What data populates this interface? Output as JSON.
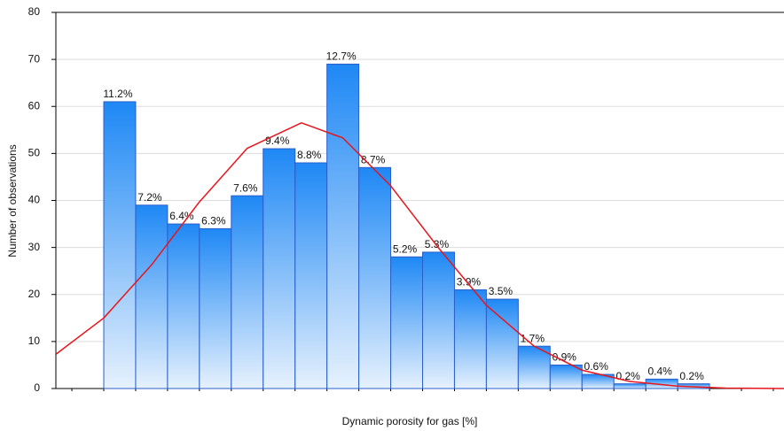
{
  "chart_data": {
    "type": "histogram",
    "xlabel": "Dynamic porosity for gas [%]",
    "ylabel": "Number of observations",
    "categories": [
      null,
      null,
      null,
      null,
      null,
      null,
      null,
      null,
      null,
      null,
      null,
      null,
      null,
      null,
      null,
      null,
      null,
      null,
      null
    ],
    "values": [
      61,
      39,
      35,
      34,
      41,
      51,
      48,
      69,
      47,
      28,
      29,
      21,
      19,
      9,
      5,
      3,
      1,
      2,
      1
    ],
    "bar_labels": [
      "11.2%",
      "7.2%",
      "6.4%",
      "6.3%",
      "7.6%",
      "9.4%",
      "8.8%",
      "12.7%",
      "8.7%",
      "5.2%",
      "5.3%",
      "3.9%",
      "3.5%",
      "1.7%",
      "0.9%",
      "0.6%",
      "0.2%",
      "0.4%",
      "0.2%"
    ],
    "color": "#1e88f5",
    "edge_color": "#2a5fc8",
    "fit": {
      "color": "#e8141c",
      "x": [
        -1.5,
        0,
        1.5,
        3,
        4.5,
        6.2,
        7.5,
        9,
        10.5,
        12,
        13.5,
        15,
        16.5,
        18,
        19.5,
        21.3
      ],
      "y": [
        7.3,
        15.0,
        26.3,
        39.7,
        51.1,
        56.5,
        53.3,
        43.1,
        29.9,
        17.7,
        9.0,
        3.9,
        1.5,
        0.5,
        0.1,
        0.0
      ]
    },
    "ylim": [
      0,
      80
    ],
    "yticks": [
      0,
      10,
      20,
      30,
      40,
      50,
      60,
      70,
      80
    ],
    "grid": true
  }
}
